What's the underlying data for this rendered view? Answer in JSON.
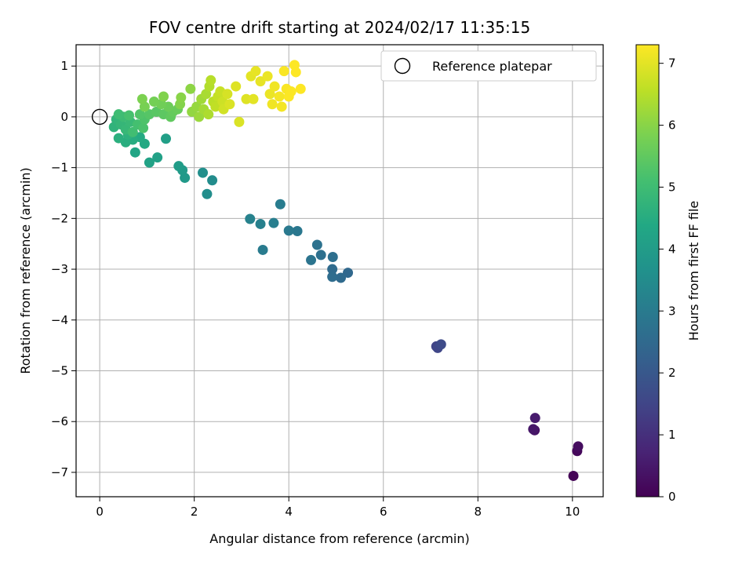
{
  "chart_data": {
    "type": "scatter",
    "title": "FOV centre drift starting at 2024/02/17 11:35:15",
    "xlabel": "Angular distance from reference (arcmin)",
    "ylabel": "Rotation from reference (arcmin)",
    "xlim": [
      -0.5,
      10.65
    ],
    "ylim": [
      -7.48,
      1.42
    ],
    "xticks": [
      0,
      2,
      4,
      6,
      8,
      10
    ],
    "yticks": [
      1,
      0,
      -1,
      -2,
      -3,
      -4,
      -5,
      -6,
      -7
    ],
    "grid": true,
    "legend": {
      "position": "top-right",
      "entries": [
        "Reference platepar"
      ]
    },
    "reference_point": {
      "x": 0,
      "y": 0,
      "label": "Reference platepar"
    },
    "colorbar": {
      "label": "Hours from first FF file",
      "min": 0,
      "max": 7.3,
      "ticks": [
        0,
        1,
        2,
        3,
        4,
        5,
        6,
        7
      ],
      "colormap": "viridis"
    },
    "points": [
      [
        10.02,
        -7.07,
        0.05
      ],
      [
        10.1,
        -6.58,
        0.15
      ],
      [
        10.12,
        -6.49,
        0.25
      ],
      [
        9.2,
        -6.17,
        0.35
      ],
      [
        9.17,
        -6.15,
        0.45
      ],
      [
        9.21,
        -5.93,
        0.55
      ],
      [
        7.12,
        -4.52,
        1.45
      ],
      [
        7.15,
        -4.55,
        1.55
      ],
      [
        7.22,
        -4.48,
        1.65
      ],
      [
        5.25,
        -3.07,
        2.45
      ],
      [
        5.1,
        -3.17,
        2.5
      ],
      [
        4.92,
        -3.0,
        2.55
      ],
      [
        4.92,
        -3.15,
        2.6
      ],
      [
        4.93,
        -2.76,
        2.65
      ],
      [
        4.68,
        -2.72,
        2.7
      ],
      [
        4.6,
        -2.52,
        2.75
      ],
      [
        4.47,
        -2.82,
        2.8
      ],
      [
        4.18,
        -2.25,
        2.9
      ],
      [
        4.0,
        -2.24,
        2.95
      ],
      [
        3.45,
        -2.62,
        3.0
      ],
      [
        3.82,
        -1.72,
        3.05
      ],
      [
        3.68,
        -2.09,
        3.1
      ],
      [
        3.4,
        -2.11,
        3.15
      ],
      [
        3.18,
        -2.01,
        3.2
      ],
      [
        2.38,
        -1.25,
        3.5
      ],
      [
        2.27,
        -1.52,
        3.55
      ],
      [
        2.18,
        -1.1,
        3.6
      ],
      [
        1.8,
        -1.2,
        3.9
      ],
      [
        1.75,
        -1.05,
        3.95
      ],
      [
        1.67,
        -0.97,
        4.0
      ],
      [
        1.4,
        -0.43,
        4.1
      ],
      [
        1.22,
        -0.8,
        4.15
      ],
      [
        1.05,
        -0.9,
        4.2
      ],
      [
        0.75,
        -0.7,
        4.3
      ],
      [
        0.95,
        -0.53,
        4.4
      ],
      [
        0.85,
        -0.4,
        4.45
      ],
      [
        0.7,
        -0.45,
        4.5
      ],
      [
        0.55,
        -0.5,
        4.55
      ],
      [
        0.4,
        -0.42,
        4.6
      ],
      [
        0.6,
        -0.35,
        4.65
      ],
      [
        0.3,
        -0.2,
        4.7
      ],
      [
        0.35,
        -0.05,
        4.75
      ],
      [
        0.45,
        -0.15,
        4.8
      ],
      [
        0.55,
        -0.25,
        4.85
      ],
      [
        0.65,
        -0.1,
        4.9
      ],
      [
        0.5,
        0.0,
        4.95
      ],
      [
        0.4,
        0.05,
        5.0
      ],
      [
        0.7,
        -0.3,
        5.05
      ],
      [
        0.8,
        -0.15,
        5.1
      ],
      [
        0.62,
        0.03,
        5.15
      ],
      [
        0.92,
        -0.22,
        5.2
      ],
      [
        0.95,
        -0.05,
        5.25
      ],
      [
        0.85,
        0.05,
        5.3
      ],
      [
        1.05,
        0.05,
        5.35
      ],
      [
        1.2,
        0.1,
        5.4
      ],
      [
        1.35,
        0.05,
        5.45
      ],
      [
        1.5,
        0.0,
        5.5
      ],
      [
        1.55,
        0.1,
        5.55
      ],
      [
        1.65,
        0.15,
        5.6
      ],
      [
        1.45,
        0.2,
        5.65
      ],
      [
        1.3,
        0.25,
        5.7
      ],
      [
        1.15,
        0.3,
        5.75
      ],
      [
        0.95,
        0.2,
        5.8
      ],
      [
        0.9,
        0.35,
        5.85
      ],
      [
        1.35,
        0.4,
        5.9
      ],
      [
        1.7,
        0.25,
        5.95
      ],
      [
        1.72,
        0.38,
        6.0
      ],
      [
        1.92,
        0.55,
        6.05
      ],
      [
        1.95,
        0.1,
        6.1
      ],
      [
        2.05,
        0.2,
        6.15
      ],
      [
        2.1,
        0.0,
        6.2
      ],
      [
        2.15,
        0.35,
        6.25
      ],
      [
        2.2,
        0.15,
        6.3
      ],
      [
        2.25,
        0.45,
        6.35
      ],
      [
        2.3,
        0.05,
        6.4
      ],
      [
        2.32,
        0.6,
        6.45
      ],
      [
        2.35,
        0.72,
        6.5
      ],
      [
        2.4,
        0.3,
        6.55
      ],
      [
        2.45,
        0.2,
        6.6
      ],
      [
        2.5,
        0.4,
        6.65
      ],
      [
        2.55,
        0.5,
        6.7
      ],
      [
        2.6,
        0.3,
        6.75
      ],
      [
        2.62,
        0.15,
        6.8
      ],
      [
        2.7,
        0.45,
        6.85
      ],
      [
        2.75,
        0.25,
        6.9
      ],
      [
        2.88,
        0.6,
        6.95
      ],
      [
        2.95,
        -0.1,
        6.9
      ],
      [
        3.1,
        0.35,
        6.95
      ],
      [
        3.2,
        0.8,
        7.0
      ],
      [
        3.25,
        0.35,
        7.0
      ],
      [
        3.3,
        0.9,
        7.05
      ],
      [
        3.4,
        0.7,
        7.05
      ],
      [
        3.55,
        0.8,
        7.1
      ],
      [
        3.6,
        0.45,
        7.1
      ],
      [
        3.65,
        0.25,
        7.15
      ],
      [
        3.7,
        0.6,
        7.15
      ],
      [
        3.8,
        0.4,
        7.2
      ],
      [
        3.85,
        0.2,
        7.2
      ],
      [
        3.9,
        0.9,
        7.25
      ],
      [
        3.95,
        0.55,
        7.25
      ],
      [
        4.0,
        0.4,
        7.28
      ],
      [
        4.05,
        0.5,
        7.28
      ],
      [
        4.12,
        1.02,
        7.3
      ],
      [
        4.15,
        0.88,
        7.3
      ],
      [
        4.25,
        0.55,
        7.3
      ]
    ]
  }
}
